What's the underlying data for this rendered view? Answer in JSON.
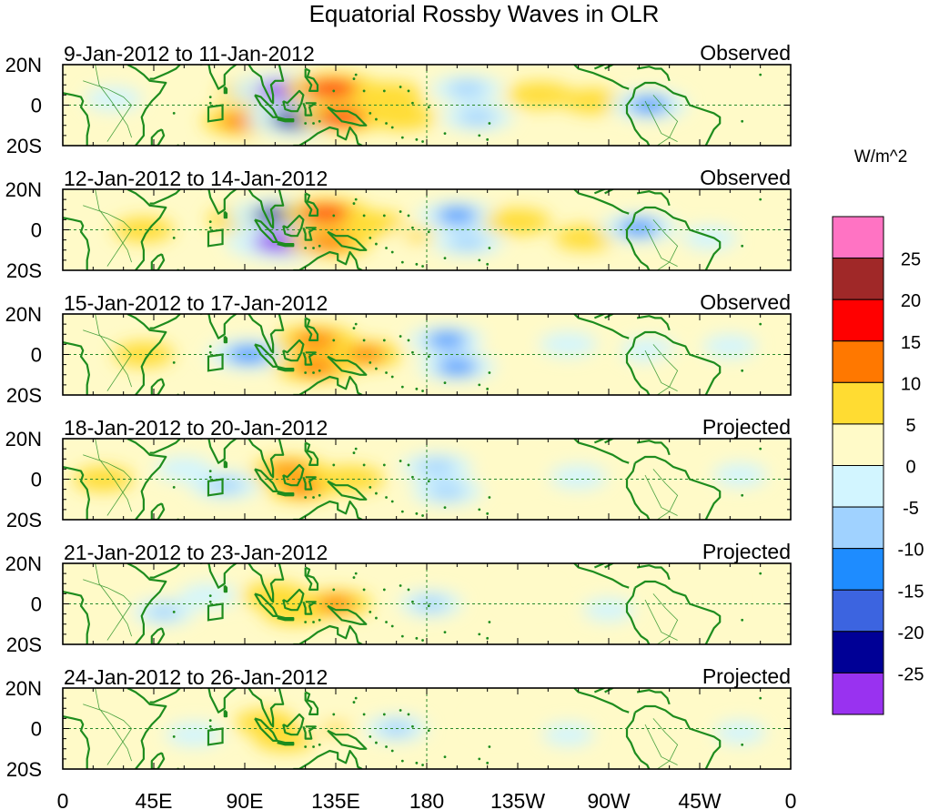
{
  "chart_data": {
    "type": "heatmap",
    "title": "Equatorial Rossby Waves in OLR",
    "units_label": "W/m^2",
    "x_ticks": [
      "0",
      "45E",
      "90E",
      "135E",
      "180",
      "135W",
      "90W",
      "45W",
      "0"
    ],
    "x_tick_values": [
      0,
      45,
      90,
      135,
      180,
      225,
      270,
      315,
      360
    ],
    "y_ticks": [
      "20N",
      "0",
      "20S"
    ],
    "y_tick_values": [
      20,
      0,
      -20
    ],
    "xlim": [
      0,
      360
    ],
    "ylim": [
      -20,
      20
    ],
    "colorbar": {
      "colors": [
        "#9932f0",
        "#000096",
        "#3c64e0",
        "#1e8cff",
        "#a0d2ff",
        "#d2f5ff",
        "#fffac8",
        "#ffdc32",
        "#ff7800",
        "#ff0000",
        "#a02828",
        "#ff73c3"
      ],
      "labels": [
        "-25",
        "-20",
        "-15",
        "-10",
        "-5",
        "0",
        "5",
        "10",
        "15",
        "20",
        "25"
      ]
    },
    "panels": [
      {
        "date_range": "9-Jan-2012 to 11-Jan-2012",
        "status": "Observed",
        "features": [
          {
            "lon": 96,
            "lat": 6,
            "value": 12
          },
          {
            "lon": 88,
            "lat": -8,
            "value": 12
          },
          {
            "lon": 112,
            "lat": 7,
            "value": -26
          },
          {
            "lon": 117,
            "lat": -7,
            "value": -22
          },
          {
            "lon": 133,
            "lat": 8,
            "value": 18
          },
          {
            "lon": 138,
            "lat": -6,
            "value": 16
          },
          {
            "lon": 162,
            "lat": 5,
            "value": 8
          },
          {
            "lon": 168,
            "lat": -6,
            "value": 8
          },
          {
            "lon": 200,
            "lat": 8,
            "value": -10
          },
          {
            "lon": 205,
            "lat": -6,
            "value": -10
          },
          {
            "lon": 236,
            "lat": 5,
            "value": 8
          },
          {
            "lon": 262,
            "lat": 2,
            "value": 6
          },
          {
            "lon": 290,
            "lat": 0,
            "value": -12
          },
          {
            "lon": 25,
            "lat": 3,
            "value": -5
          }
        ]
      },
      {
        "date_range": "12-Jan-2012 to 14-Jan-2012",
        "status": "Observed",
        "features": [
          {
            "lon": 88,
            "lat": 5,
            "value": 8
          },
          {
            "lon": 108,
            "lat": 7,
            "value": -22
          },
          {
            "lon": 110,
            "lat": -6,
            "value": -26
          },
          {
            "lon": 130,
            "lat": 8,
            "value": 16
          },
          {
            "lon": 132,
            "lat": -6,
            "value": 14
          },
          {
            "lon": 155,
            "lat": 3,
            "value": 6
          },
          {
            "lon": 176,
            "lat": -3,
            "value": 5
          },
          {
            "lon": 195,
            "lat": 7,
            "value": -12
          },
          {
            "lon": 200,
            "lat": -6,
            "value": -10
          },
          {
            "lon": 225,
            "lat": 4,
            "value": 8
          },
          {
            "lon": 258,
            "lat": -4,
            "value": 6
          },
          {
            "lon": 285,
            "lat": 1,
            "value": -12
          },
          {
            "lon": 320,
            "lat": -4,
            "value": -4
          },
          {
            "lon": 40,
            "lat": 0,
            "value": 6
          }
        ]
      },
      {
        "date_range": "15-Jan-2012 to 17-Jan-2012",
        "status": "Observed",
        "features": [
          {
            "lon": 40,
            "lat": 0,
            "value": 6
          },
          {
            "lon": 92,
            "lat": 0,
            "value": -14
          },
          {
            "lon": 125,
            "lat": 7,
            "value": 14
          },
          {
            "lon": 125,
            "lat": -6,
            "value": 14
          },
          {
            "lon": 150,
            "lat": 0,
            "value": 10
          },
          {
            "lon": 190,
            "lat": 7,
            "value": -12
          },
          {
            "lon": 195,
            "lat": -6,
            "value": -12
          },
          {
            "lon": 220,
            "lat": 5,
            "value": 4
          },
          {
            "lon": 250,
            "lat": 5,
            "value": -5
          },
          {
            "lon": 290,
            "lat": 2,
            "value": -5
          },
          {
            "lon": 305,
            "lat": -5,
            "value": 4
          },
          {
            "lon": 330,
            "lat": 4,
            "value": -4
          }
        ]
      },
      {
        "date_range": "18-Jan-2012 to 20-Jan-2012",
        "status": "Projected",
        "features": [
          {
            "lon": 20,
            "lat": 0,
            "value": 6
          },
          {
            "lon": 60,
            "lat": 5,
            "value": -5
          },
          {
            "lon": 80,
            "lat": -3,
            "value": -10
          },
          {
            "lon": 112,
            "lat": 4,
            "value": 12
          },
          {
            "lon": 118,
            "lat": -4,
            "value": 10
          },
          {
            "lon": 142,
            "lat": 0,
            "value": 9
          },
          {
            "lon": 185,
            "lat": 6,
            "value": -10
          },
          {
            "lon": 190,
            "lat": -6,
            "value": -10
          },
          {
            "lon": 220,
            "lat": 3,
            "value": 3
          },
          {
            "lon": 255,
            "lat": 1,
            "value": -5
          },
          {
            "lon": 300,
            "lat": 0,
            "value": 3
          },
          {
            "lon": 335,
            "lat": 2,
            "value": -4
          }
        ]
      },
      {
        "date_range": "21-Jan-2012 to 23-Jan-2012",
        "status": "Projected",
        "features": [
          {
            "lon": 30,
            "lat": 2,
            "value": 4
          },
          {
            "lon": 50,
            "lat": -4,
            "value": -7
          },
          {
            "lon": 72,
            "lat": 4,
            "value": -5
          },
          {
            "lon": 105,
            "lat": 4,
            "value": 8
          },
          {
            "lon": 115,
            "lat": -4,
            "value": 8
          },
          {
            "lon": 135,
            "lat": 0,
            "value": 10
          },
          {
            "lon": 182,
            "lat": 0,
            "value": -7
          },
          {
            "lon": 230,
            "lat": 5,
            "value": 3
          },
          {
            "lon": 270,
            "lat": -3,
            "value": -3
          },
          {
            "lon": 320,
            "lat": 2,
            "value": 2
          }
        ]
      },
      {
        "date_range": "24-Jan-2012 to 26-Jan-2012",
        "status": "Projected",
        "features": [
          {
            "lon": 30,
            "lat": 2,
            "value": 3
          },
          {
            "lon": 65,
            "lat": -3,
            "value": -5
          },
          {
            "lon": 100,
            "lat": 3,
            "value": 6
          },
          {
            "lon": 110,
            "lat": -5,
            "value": 7
          },
          {
            "lon": 135,
            "lat": 0,
            "value": 5
          },
          {
            "lon": 165,
            "lat": 0,
            "value": -7
          },
          {
            "lon": 215,
            "lat": 3,
            "value": 3
          },
          {
            "lon": 250,
            "lat": -3,
            "value": -3
          },
          {
            "lon": 300,
            "lat": 3,
            "value": 2
          },
          {
            "lon": 335,
            "lat": -2,
            "value": -3
          }
        ]
      }
    ]
  },
  "colors": {
    "coastline": "#1e8c1e",
    "equator": "#2a8a2a",
    "frame": "#000000"
  }
}
